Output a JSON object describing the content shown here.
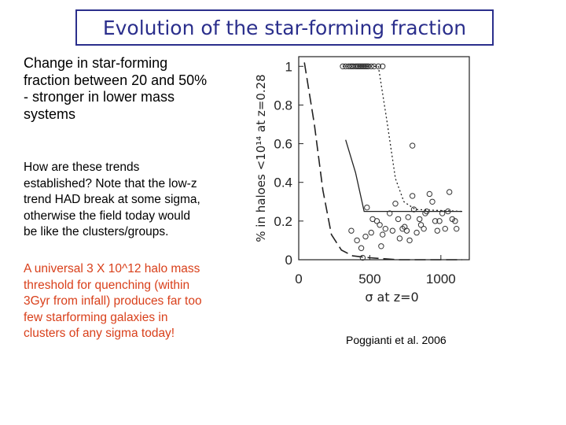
{
  "slide": {
    "title": "Evolution of the star-forming fraction",
    "para1_lines": [
      "Change in star-forming",
      "fraction between 20 and 50%",
      "- stronger in lower mass",
      "systems"
    ],
    "para2_lines": [
      "How are these trends",
      "established?  Note that the low-z",
      "trend HAD break at some sigma,",
      "otherwise the field today would",
      "be like the clusters/groups."
    ],
    "para3_lines": [
      "A universal 3 X 10^12 halo mass",
      "threshold for quenching (within",
      "3Gyr from infall) produces far too",
      "few starforming galaxies in",
      "clusters of any sigma today!"
    ],
    "caption": "Poggianti et al. 2006",
    "colors": {
      "title": "#2b2f8c",
      "highlight_text": "#d9401b"
    }
  },
  "chart_data": {
    "type": "scatter",
    "xlabel": "σ at z=0",
    "ylabel": "% in haloes <10¹⁴ at z=0.28",
    "x_ticks": [
      "500",
      "1000"
    ],
    "y_ticks": [
      "0",
      "0.2",
      "0.4",
      "0.6",
      "0.8",
      "1"
    ],
    "xlim": [
      0,
      1200
    ],
    "ylim": [
      0,
      1.05
    ],
    "points": [
      [
        310,
        1
      ],
      [
        330,
        1
      ],
      [
        350,
        1
      ],
      [
        365,
        1
      ],
      [
        375,
        1
      ],
      [
        385,
        1
      ],
      [
        400,
        1
      ],
      [
        410,
        1
      ],
      [
        420,
        1
      ],
      [
        430,
        1
      ],
      [
        440,
        1
      ],
      [
        450,
        1
      ],
      [
        460,
        1
      ],
      [
        470,
        1
      ],
      [
        480,
        1
      ],
      [
        490,
        1
      ],
      [
        510,
        1
      ],
      [
        530,
        1
      ],
      [
        560,
        1
      ],
      [
        590,
        1
      ],
      [
        800,
        0.59
      ],
      [
        370,
        0.15
      ],
      [
        410,
        0.1
      ],
      [
        440,
        0.06
      ],
      [
        470,
        0.12
      ],
      [
        480,
        0.27
      ],
      [
        510,
        0.14
      ],
      [
        520,
        0.21
      ],
      [
        550,
        0.2
      ],
      [
        570,
        0.18
      ],
      [
        590,
        0.13
      ],
      [
        610,
        0.16
      ],
      [
        640,
        0.24
      ],
      [
        660,
        0.15
      ],
      [
        680,
        0.29
      ],
      [
        700,
        0.21
      ],
      [
        710,
        0.11
      ],
      [
        730,
        0.16
      ],
      [
        745,
        0.17
      ],
      [
        760,
        0.15
      ],
      [
        770,
        0.22
      ],
      [
        780,
        0.1
      ],
      [
        800,
        0.33
      ],
      [
        810,
        0.26
      ],
      [
        830,
        0.14
      ],
      [
        850,
        0.21
      ],
      [
        860,
        0.18
      ],
      [
        880,
        0.16
      ],
      [
        890,
        0.24
      ],
      [
        900,
        0.25
      ],
      [
        920,
        0.34
      ],
      [
        940,
        0.3
      ],
      [
        960,
        0.2
      ],
      [
        975,
        0.15
      ],
      [
        990,
        0.2
      ],
      [
        1010,
        0.24
      ],
      [
        1030,
        0.16
      ],
      [
        1050,
        0.25
      ],
      [
        1060,
        0.35
      ],
      [
        1080,
        0.21
      ],
      [
        1100,
        0.2
      ],
      [
        1110,
        0.16
      ],
      [
        450,
        0.01
      ],
      [
        580,
        0.07
      ]
    ],
    "series": [
      {
        "style": "dashed",
        "values": [
          [
            40,
            1.02
          ],
          [
            110,
            0.7
          ],
          [
            170,
            0.36
          ],
          [
            230,
            0.13
          ],
          [
            300,
            0.05
          ],
          [
            380,
            0.02
          ],
          [
            500,
            0.01
          ],
          [
            700,
            0.0
          ],
          [
            1150,
            0.0
          ]
        ]
      },
      {
        "style": "solid",
        "values": [
          [
            330,
            0.62
          ],
          [
            400,
            0.45
          ],
          [
            460,
            0.25
          ],
          [
            560,
            0.25
          ],
          [
            1150,
            0.25
          ]
        ]
      },
      {
        "style": "dotted",
        "values": [
          [
            310,
            1.0
          ],
          [
            450,
            1.0
          ],
          [
            560,
            1.0
          ],
          [
            620,
            0.72
          ],
          [
            680,
            0.42
          ],
          [
            740,
            0.3
          ],
          [
            820,
            0.26
          ],
          [
            1150,
            0.25
          ]
        ]
      }
    ]
  }
}
